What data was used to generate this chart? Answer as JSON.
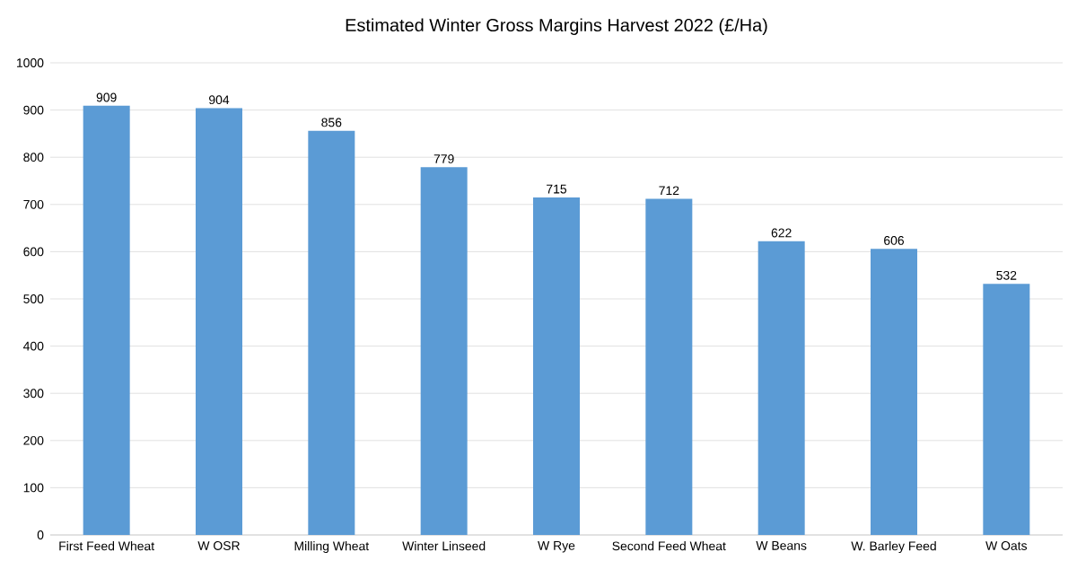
{
  "chart_data": {
    "type": "bar",
    "title": "Estimated Winter Gross Margins Harvest 2022 (£/Ha)",
    "categories": [
      "First Feed Wheat",
      "W OSR",
      "Milling Wheat",
      "Winter Linseed",
      "W Rye",
      "Second Feed Wheat",
      "W Beans",
      "W. Barley Feed",
      "W Oats"
    ],
    "values": [
      909,
      904,
      856,
      779,
      715,
      712,
      622,
      606,
      532
    ],
    "color": "#5b9bd5",
    "ylim": [
      0,
      1000
    ],
    "yticks": [
      0,
      100,
      200,
      300,
      400,
      500,
      600,
      700,
      800,
      900,
      1000
    ],
    "grid": "y",
    "data_labels": true
  }
}
